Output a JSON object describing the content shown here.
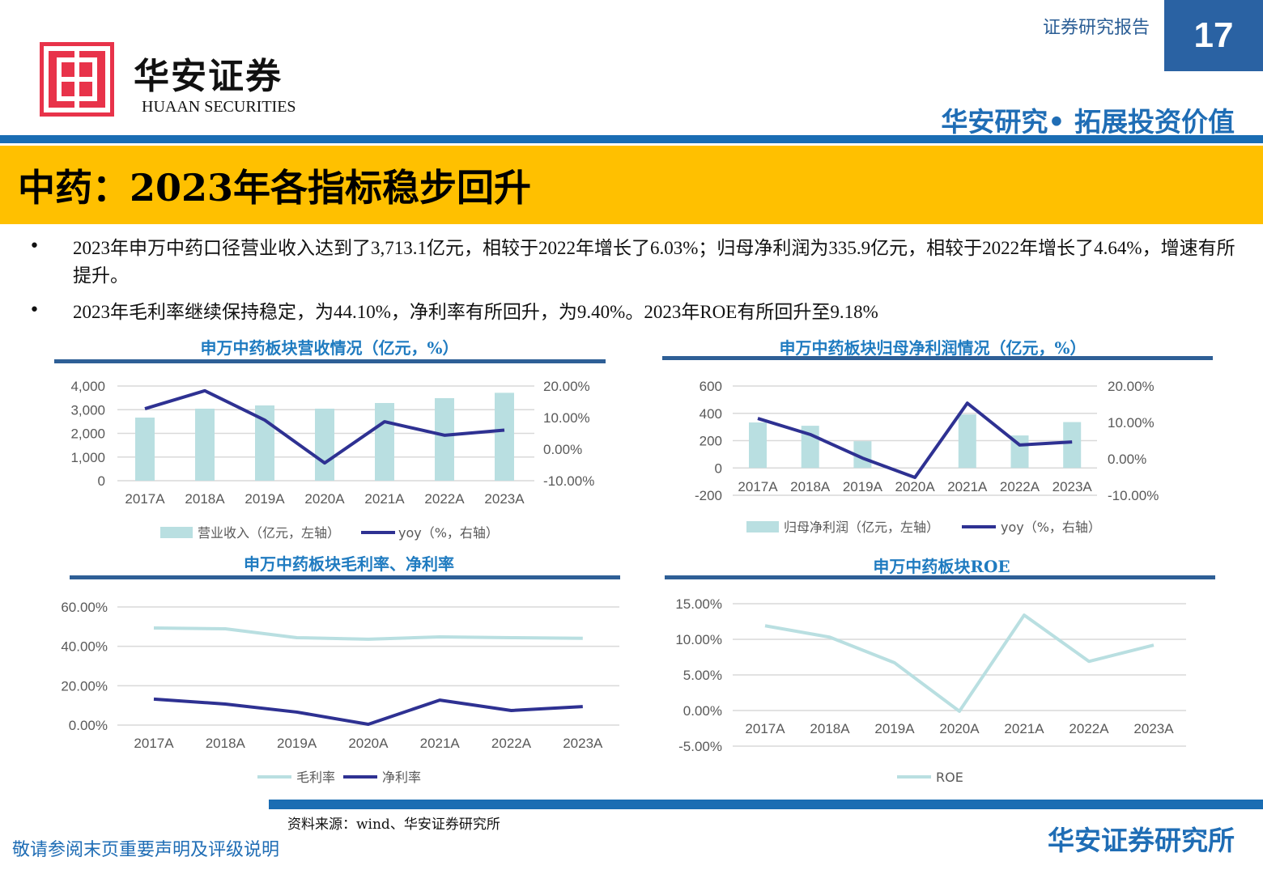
{
  "header": {
    "logo_cn": "华安证券",
    "logo_en": "HUAAN SECURITIES",
    "report_type": "证券研究报告",
    "page_number": "17",
    "slogan": "华安研究• 拓展投资价值"
  },
  "title": "中药：2023年各指标稳步回升",
  "bullets": [
    "2023年申万中药口径营业收入达到了3,713.1亿元，相较于2022年增长了6.03%；归母净利润为335.9亿元，相较于2022年增长了4.64%，增速有所提升。",
    "2023年毛利率继续保持稳定，为44.10%，净利率有所回升，为9.40%。2023年ROE有所回升至9.18%"
  ],
  "colors": {
    "bar": "#b9dfe1",
    "line_dark": "#2e3192",
    "line_light": "#b9dfe1",
    "accent": "#1f6db5",
    "banner": "#ffc000"
  },
  "chart_data": [
    {
      "type": "bar+line",
      "title": "申万中药板块营收情况（亿元，%）",
      "categories": [
        "2017A",
        "2018A",
        "2019A",
        "2020A",
        "2021A",
        "2022A",
        "2023A"
      ],
      "left_ticks": [
        "4,000",
        "3,000",
        "2,000",
        "1,000",
        "0"
      ],
      "right_ticks": [
        "20.00%",
        "10.00%",
        "0.00%",
        "-10.00%"
      ],
      "ylim_left": [
        0,
        4000
      ],
      "ylim_right": [
        -10,
        20
      ],
      "grid": true,
      "legend": "bottom",
      "series": [
        {
          "name": "营业收入（亿元，左轴）",
          "type": "bar",
          "axis": "left",
          "values": [
            2667,
            3043,
            3180,
            3043,
            3282,
            3487,
            3713.1
          ]
        },
        {
          "name": "yoy（%，右轴）",
          "type": "line",
          "axis": "right",
          "values": [
            12.8,
            18.5,
            9.2,
            -4.4,
            8.7,
            4.4,
            6.03
          ]
        }
      ]
    },
    {
      "type": "bar+line",
      "title": "申万中药板块归母净利润情况（亿元，%）",
      "categories": [
        "2017A",
        "2018A",
        "2019A",
        "2020A",
        "2021A",
        "2022A",
        "2023A"
      ],
      "left_ticks": [
        "600",
        "400",
        "200",
        "0",
        "-200"
      ],
      "right_ticks": [
        "20.00%",
        "10.00%",
        "0.00%",
        "-10.00%"
      ],
      "ylim_left": [
        -200,
        600
      ],
      "ylim_right": [
        -10,
        20
      ],
      "grid": true,
      "legend": "bottom",
      "series": [
        {
          "name": "归母净利润（亿元，左轴）",
          "type": "bar",
          "axis": "left",
          "values": [
            333,
            309,
            196,
            null,
            392,
            238,
            335.9
          ]
        },
        {
          "name": "yoy（%，右轴）",
          "type": "line",
          "axis": "right",
          "values": [
            11.1,
            6.7,
            0.2,
            -5.1,
            15.3,
            3.8,
            4.64
          ]
        }
      ]
    },
    {
      "type": "line",
      "title": "申万中药板块毛利率、净利率",
      "categories": [
        "2017A",
        "2018A",
        "2019A",
        "2020A",
        "2021A",
        "2022A",
        "2023A"
      ],
      "left_ticks": [
        "60.00%",
        "40.00%",
        "20.00%",
        "0.00%"
      ],
      "ylim_left": [
        0,
        60
      ],
      "grid": true,
      "legend": "bottom",
      "series": [
        {
          "name": "毛利率",
          "type": "line",
          "axis": "left",
          "values": [
            49.3,
            48.9,
            44.4,
            43.6,
            44.8,
            44.4,
            44.1
          ]
        },
        {
          "name": "净利率",
          "type": "line",
          "axis": "left",
          "values": [
            13.2,
            10.7,
            6.6,
            0.4,
            12.7,
            7.4,
            9.4
          ]
        }
      ]
    },
    {
      "type": "line",
      "title": "申万中药板块ROE",
      "categories": [
        "2017A",
        "2018A",
        "2019A",
        "2020A",
        "2021A",
        "2022A",
        "2023A"
      ],
      "left_ticks": [
        "15.00%",
        "10.00%",
        "5.00%",
        "0.00%",
        "-5.00%"
      ],
      "ylim_left": [
        -5,
        15
      ],
      "grid": true,
      "legend": "bottom",
      "series": [
        {
          "name": "ROE",
          "type": "line",
          "axis": "left",
          "values": [
            11.9,
            10.3,
            6.7,
            -0.1,
            13.4,
            6.9,
            9.18
          ]
        }
      ]
    }
  ],
  "footer": {
    "source": "资料来源：wind、华安证券研究所",
    "disclaimer": "敬请参阅末页重要声明及评级说明",
    "org": "华安证券研究所"
  }
}
